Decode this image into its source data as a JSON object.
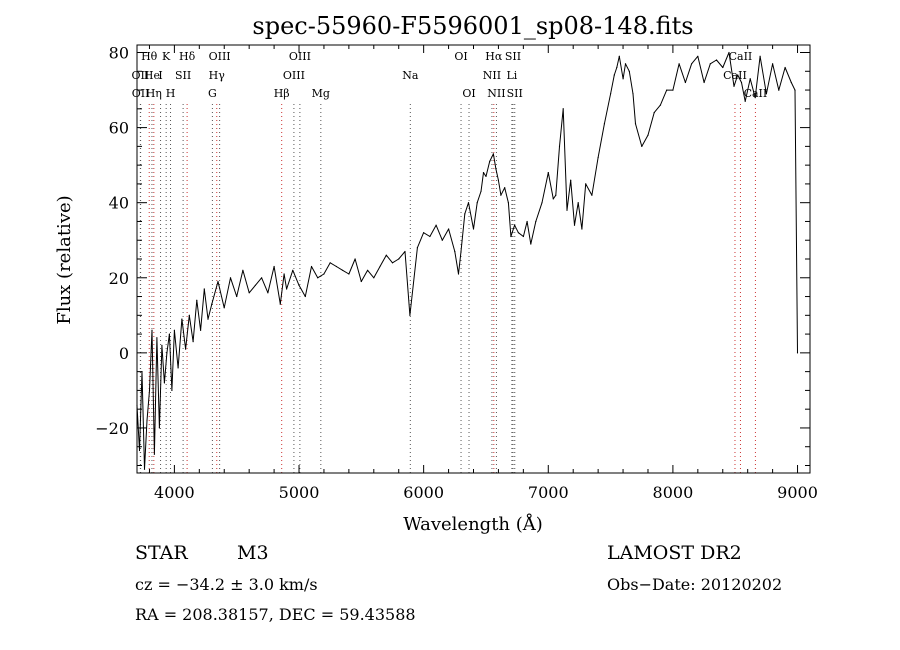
{
  "chart_data": {
    "type": "line",
    "title": "spec-55960-F5596001_sp08-148.fits",
    "xlabel": "Wavelength (Å)",
    "ylabel": "Flux (relative)",
    "xlim": [
      3700,
      9100
    ],
    "ylim": [
      -32,
      82
    ],
    "xticks": [
      4000,
      5000,
      6000,
      7000,
      8000,
      9000
    ],
    "yticks": [
      -20,
      0,
      20,
      40,
      60,
      80
    ],
    "xtick_labels": [
      "4000",
      "5000",
      "6000",
      "7000",
      "8000",
      "9000"
    ],
    "ytick_labels": [
      "−20",
      "0",
      "20",
      "40",
      "60",
      "80"
    ],
    "grid": false,
    "series": [
      {
        "color": "#000000",
        "x": [
          3700,
          3720,
          3740,
          3760,
          3780,
          3800,
          3820,
          3840,
          3860,
          3880,
          3900,
          3920,
          3940,
          3960,
          3980,
          4000,
          4030,
          4060,
          4090,
          4120,
          4150,
          4180,
          4210,
          4240,
          4270,
          4300,
          4350,
          4400,
          4450,
          4500,
          4550,
          4600,
          4650,
          4700,
          4750,
          4800,
          4850,
          4880,
          4900,
          4950,
          5000,
          5050,
          5100,
          5150,
          5200,
          5250,
          5300,
          5350,
          5400,
          5450,
          5500,
          5550,
          5600,
          5650,
          5700,
          5750,
          5800,
          5850,
          5890,
          5950,
          6000,
          6050,
          6100,
          6150,
          6200,
          6250,
          6280,
          6300,
          6330,
          6360,
          6400,
          6430,
          6460,
          6480,
          6500,
          6530,
          6560,
          6580,
          6600,
          6620,
          6650,
          6680,
          6700,
          6730,
          6760,
          6800,
          6830,
          6860,
          6900,
          6950,
          7000,
          7040,
          7060,
          7090,
          7120,
          7150,
          7180,
          7210,
          7240,
          7270,
          7300,
          7350,
          7400,
          7450,
          7500,
          7530,
          7550,
          7570,
          7600,
          7620,
          7650,
          7680,
          7700,
          7750,
          7800,
          7850,
          7900,
          7950,
          8000,
          8050,
          8100,
          8150,
          8200,
          8250,
          8300,
          8350,
          8400,
          8450,
          8490,
          8520,
          8550,
          8580,
          8620,
          8660,
          8700,
          8750,
          8800,
          8850,
          8900,
          8950,
          8980,
          9000
        ],
        "y": [
          -14,
          -26,
          -5,
          -31,
          -18,
          -10,
          6,
          -27,
          4,
          -20,
          2,
          -8,
          0,
          5,
          -10,
          6,
          -4,
          9,
          1,
          10,
          3,
          14,
          6,
          17,
          9,
          13,
          19,
          12,
          20,
          15,
          22,
          16,
          18,
          20,
          16,
          23,
          13,
          21,
          17,
          22,
          18,
          15,
          23,
          20,
          21,
          24,
          23,
          22,
          21,
          25,
          19,
          22,
          20,
          23,
          26,
          24,
          25,
          27,
          10,
          28,
          32,
          31,
          34,
          30,
          33,
          27,
          21,
          27,
          37,
          40,
          33,
          40,
          43,
          48,
          47,
          51,
          53,
          49,
          46,
          42,
          44,
          40,
          31,
          34,
          32,
          31,
          35,
          29,
          35,
          40,
          48,
          41,
          42,
          55,
          65,
          38,
          46,
          34,
          40,
          33,
          45,
          42,
          52,
          61,
          69,
          74,
          76,
          79,
          73,
          77,
          75,
          69,
          61,
          55,
          58,
          64,
          66,
          70,
          70,
          77,
          72,
          77,
          79,
          72,
          77,
          78,
          76,
          80,
          71,
          74,
          72,
          67,
          73,
          68,
          79,
          69,
          77,
          70,
          76,
          72,
          70,
          0
        ]
      }
    ],
    "line_markers": [
      {
        "label": "Hθ",
        "x": 3798,
        "color": "#cc3333",
        "row": 0
      },
      {
        "label": "OII",
        "x": 3727,
        "color": "#555555",
        "row": 1
      },
      {
        "label": "OII",
        "x": 3729,
        "color": "#555555",
        "row": 2
      },
      {
        "label": "K",
        "x": 3934,
        "color": "#555555",
        "row": 0
      },
      {
        "label": "He",
        "x": 3820,
        "color": "#555555",
        "row": 1
      },
      {
        "label": "Hη",
        "x": 3835,
        "color": "#cc3333",
        "row": 2
      },
      {
        "label": "Hδ",
        "x": 4102,
        "color": "#cc3333",
        "row": 0
      },
      {
        "label": "I",
        "x": 3889,
        "color": "#555555",
        "row": 1
      },
      {
        "label": "SII",
        "x": 4070,
        "color": "#555555",
        "row": 1
      },
      {
        "label": "H",
        "x": 3969,
        "color": "#555555",
        "row": 2
      },
      {
        "label": "OIII",
        "x": 4363,
        "color": "#555555",
        "row": 0
      },
      {
        "label": "Hγ",
        "x": 4340,
        "color": "#cc3333",
        "row": 1
      },
      {
        "label": "G",
        "x": 4305,
        "color": "#555555",
        "row": 2
      },
      {
        "label": "Hβ",
        "x": 4861,
        "color": "#cc3333",
        "row": 2
      },
      {
        "label": "OIII",
        "x": 5007,
        "color": "#555555",
        "row": 0
      },
      {
        "label": "OIII",
        "x": 4959,
        "color": "#555555",
        "row": 1
      },
      {
        "label": "Mg",
        "x": 5175,
        "color": "#555555",
        "row": 2
      },
      {
        "label": "Na",
        "x": 5893,
        "color": "#555555",
        "row": 1
      },
      {
        "label": "OI",
        "x": 6300,
        "color": "#555555",
        "row": 0
      },
      {
        "label": "OI",
        "x": 6364,
        "color": "#555555",
        "row": 2
      },
      {
        "label": "Hα",
        "x": 6563,
        "color": "#cc3333",
        "row": 0
      },
      {
        "label": "SII",
        "x": 6717,
        "color": "#555555",
        "row": 0
      },
      {
        "label": "NII",
        "x": 6548,
        "color": "#555555",
        "row": 1
      },
      {
        "label": "Li",
        "x": 6708,
        "color": "#555555",
        "row": 1
      },
      {
        "label": "NII",
        "x": 6584,
        "color": "#555555",
        "row": 2
      },
      {
        "label": "SII",
        "x": 6731,
        "color": "#555555",
        "row": 2
      },
      {
        "label": "CaII",
        "x": 8542,
        "color": "#cc3333",
        "row": 0
      },
      {
        "label": "CaII",
        "x": 8498,
        "color": "#cc3333",
        "row": 1
      },
      {
        "label": "CaII",
        "x": 8662,
        "color": "#cc3333",
        "row": 2
      }
    ]
  },
  "footer": {
    "object": "STAR",
    "subclass": "M3",
    "survey": "LAMOST DR2",
    "cz": "cz = −34.2 ± 3.0 km/s",
    "obs_date": "Obs−Date: 20120202",
    "radec": "RA = 208.38157, DEC =  59.43588"
  }
}
